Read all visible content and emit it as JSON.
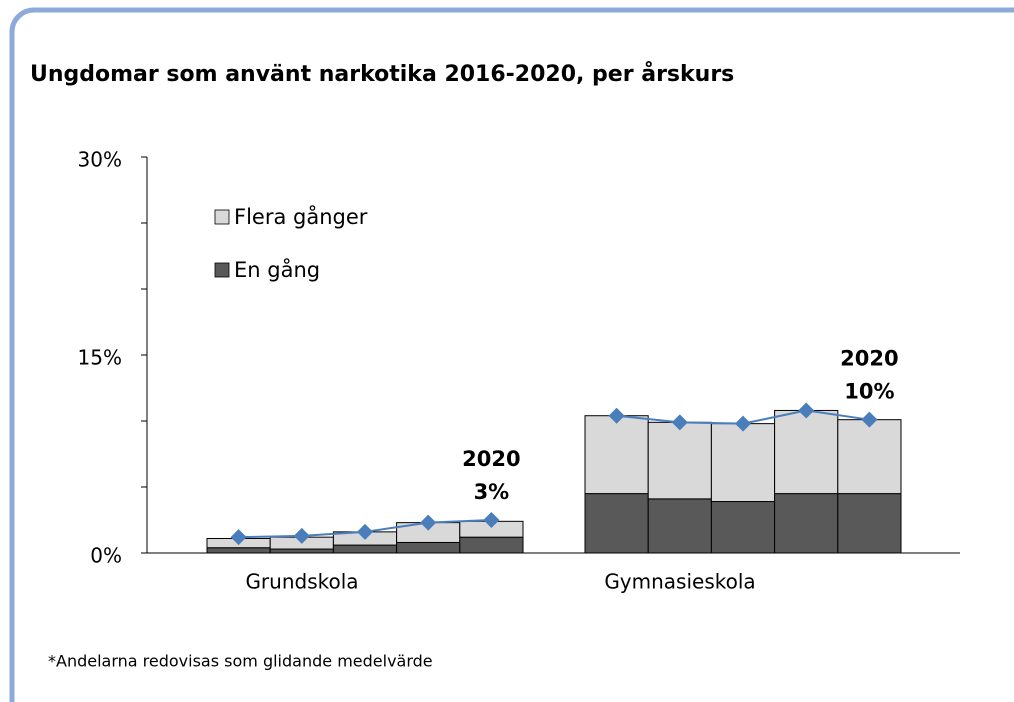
{
  "chart_data": {
    "type": "grouped-stacked-bar",
    "title": "Ungdomar som använt narkotika 2016-2020, per årskurs",
    "categories": [
      "Grundskola",
      "Gymnasieskola"
    ],
    "series": [
      {
        "name": "En gång",
        "color": "#595959",
        "values": [
          [
            0.4,
            0.3,
            0.6,
            0.8,
            1.2
          ],
          [
            4.5,
            4.1,
            3.9,
            4.5,
            4.5
          ]
        ]
      },
      {
        "name": "Flera gånger",
        "color": "#d9d9d9",
        "values": [
          [
            0.7,
            0.9,
            1.0,
            1.5,
            1.2
          ],
          [
            5.9,
            5.8,
            5.9,
            6.3,
            5.6
          ]
        ]
      }
    ],
    "line": {
      "color": "#4a7ebb",
      "values": [
        [
          1.2,
          1.3,
          1.6,
          2.3,
          2.5
        ],
        [
          10.4,
          9.9,
          9.8,
          10.8,
          10.1
        ]
      ]
    },
    "annotations": [
      [
        "2020",
        "3%"
      ],
      [
        "2020",
        "10%"
      ]
    ],
    "ylim": [
      0,
      30
    ],
    "yticks": [
      {
        "value": 0,
        "label": "0%"
      },
      {
        "value": 15,
        "label": "15%"
      },
      {
        "value": 30,
        "label": "30%"
      }
    ],
    "minor_yticks": [
      5,
      10,
      20,
      25
    ],
    "legend": "upper left",
    "footnote": "*Andelarna redovisas som glidande medelvärde"
  }
}
